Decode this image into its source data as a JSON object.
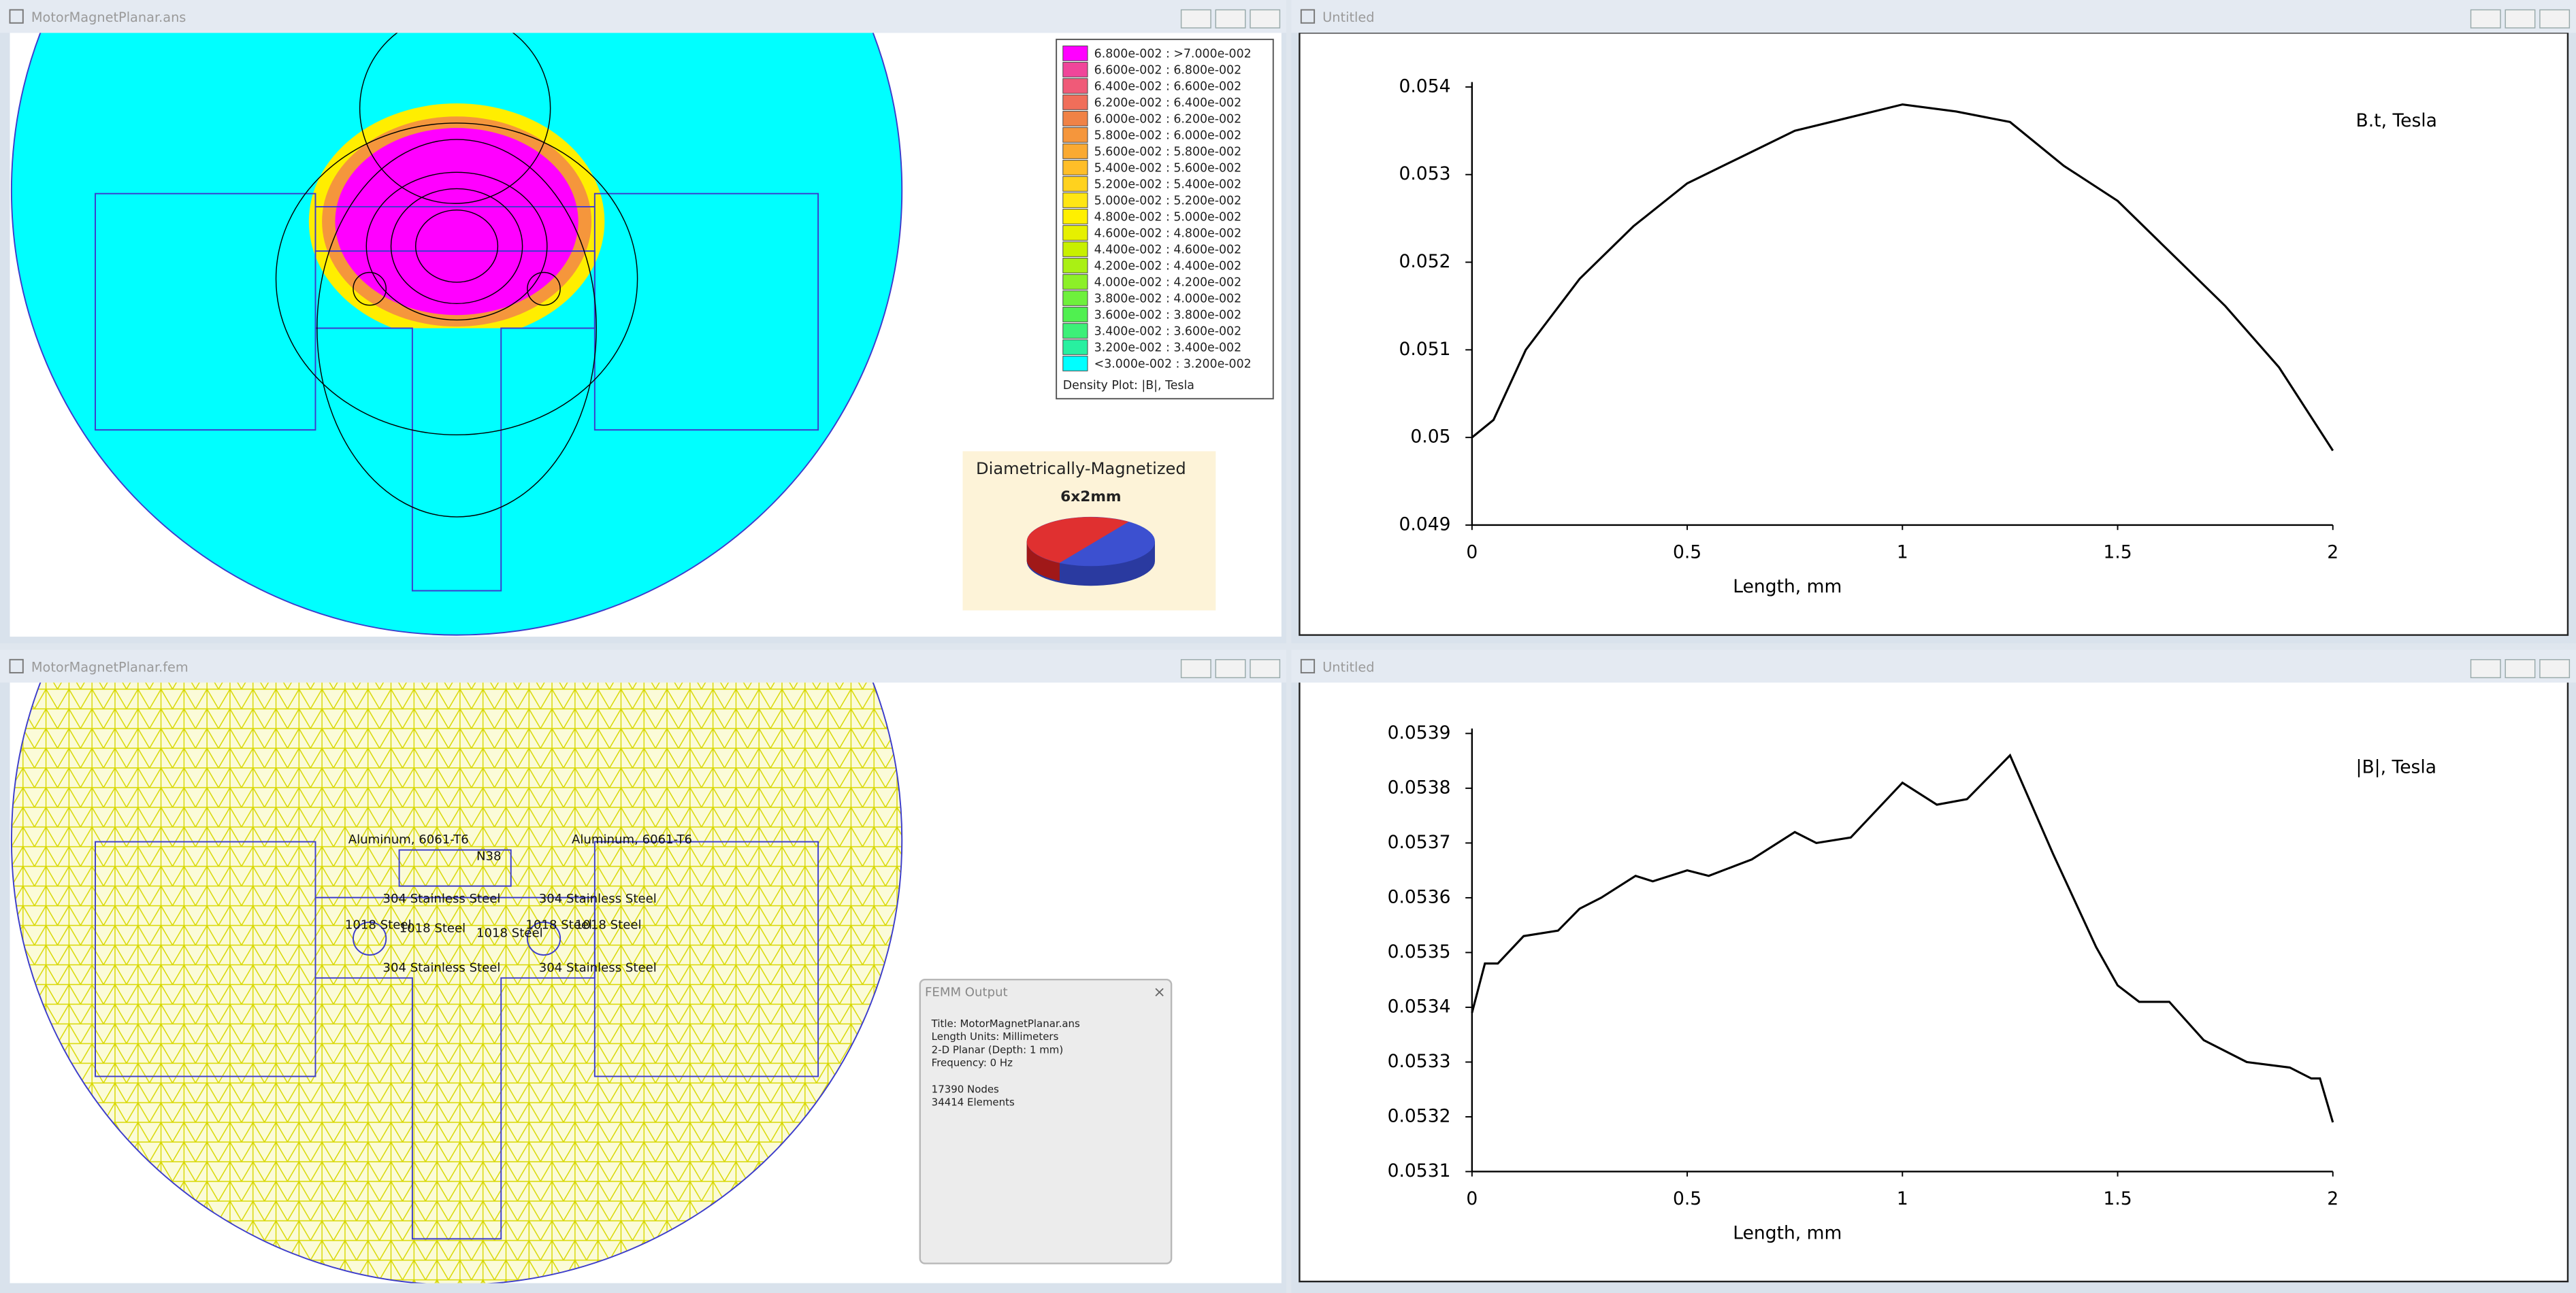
{
  "windows": [
    {
      "title": "MotorMagnetPlanar.ans",
      "legend": {
        "entries": [
          {
            "label": "6.800e-002 : >7.000e-002",
            "color": "#ff00ff"
          },
          {
            "label": "6.600e-002 : 6.800e-002",
            "color": "#f0469a"
          },
          {
            "label": "6.400e-002 : 6.600e-002",
            "color": "#f05a78"
          },
          {
            "label": "6.200e-002 : 6.400e-002",
            "color": "#f06e5a"
          },
          {
            "label": "6.000e-002 : 6.200e-002",
            "color": "#f08246"
          },
          {
            "label": "5.800e-002 : 6.000e-002",
            "color": "#f5963c"
          },
          {
            "label": "5.600e-002 : 5.800e-002",
            "color": "#faaa32"
          },
          {
            "label": "5.400e-002 : 5.600e-002",
            "color": "#ffbe28"
          },
          {
            "label": "5.200e-002 : 5.400e-002",
            "color": "#ffd21e"
          },
          {
            "label": "5.000e-002 : 5.200e-002",
            "color": "#ffe614"
          },
          {
            "label": "4.800e-002 : 5.000e-002",
            "color": "#fff000"
          },
          {
            "label": "4.600e-002 : 4.800e-002",
            "color": "#e6f000"
          },
          {
            "label": "4.400e-002 : 4.600e-002",
            "color": "#c8f000"
          },
          {
            "label": "4.200e-002 : 4.400e-002",
            "color": "#aaf014"
          },
          {
            "label": "4.000e-002 : 4.200e-002",
            "color": "#8cf028"
          },
          {
            "label": "3.800e-002 : 4.000e-002",
            "color": "#6ef03c"
          },
          {
            "label": "3.600e-002 : 3.800e-002",
            "color": "#50f050"
          },
          {
            "label": "3.400e-002 : 3.600e-002",
            "color": "#3cf078"
          },
          {
            "label": "3.200e-002 : 3.400e-002",
            "color": "#28f0a0"
          },
          {
            "label": "<3.000e-002 : 3.200e-002",
            "color": "#00ffff"
          }
        ],
        "caption": "Density Plot: |B|, Tesla"
      },
      "inset": {
        "title": "Diametrically-Magnetized",
        "subtitle": "6x2mm"
      }
    },
    {
      "title": "Untitled",
      "chart": {
        "type": "line",
        "annotation": "B.t, Tesla",
        "x_label": "Length, mm",
        "color": "#000000",
        "x": [
          0,
          0.05,
          0.125,
          0.25,
          0.375,
          0.5,
          0.625,
          0.75,
          0.875,
          1.0,
          1.125,
          1.25,
          1.375,
          1.5,
          1.625,
          1.75,
          1.875,
          2.0
        ],
        "values": [
          0.05,
          0.0502,
          0.051,
          0.05181,
          0.05241,
          0.0529,
          0.0532,
          0.0535,
          0.05365,
          0.0538,
          0.05372,
          0.0536,
          0.0531,
          0.0527,
          0.0521,
          0.0515,
          0.0508,
          0.04985
        ],
        "xlim": [
          0,
          2
        ],
        "xticks": [
          0,
          0.5,
          1,
          1.5,
          2
        ],
        "ylim": [
          0.049,
          0.054
        ],
        "yticks": [
          0.049,
          0.05,
          0.051,
          0.052,
          0.053,
          0.054
        ]
      }
    },
    {
      "title": "MotorMagnetPlanar.fem",
      "labels": [
        "Aluminum, 6061-T6",
        "Aluminum, 6061-T6",
        "N38",
        "304 Stainless Steel",
        "304 Stainless Steel",
        "304 Stainless Steel",
        "304 Stainless Steel",
        "1018 Steel",
        "1018 Steel",
        "1018 Steel",
        "1018 Steel",
        "1018 Steel"
      ],
      "output": {
        "title": "FEMM Output",
        "lines": [
          "Title: MotorMagnetPlanar.ans",
          "Length Units: Millimeters",
          "2-D Planar (Depth: 1 mm)",
          "Frequency: 0 Hz",
          "17390 Nodes",
          "34414 Elements"
        ]
      }
    },
    {
      "title": "Untitled",
      "chart": {
        "type": "line",
        "annotation": "|B|, Tesla",
        "x_label": "Length, mm",
        "color": "#000000",
        "x": [
          0,
          0.03,
          0.06,
          0.12,
          0.2,
          0.25,
          0.3,
          0.38,
          0.42,
          0.5,
          0.55,
          0.65,
          0.75,
          0.8,
          0.88,
          1.0,
          1.08,
          1.15,
          1.25,
          1.35,
          1.45,
          1.5,
          1.55,
          1.62,
          1.7,
          1.8,
          1.9,
          1.95,
          1.97,
          2.0
        ],
        "values": [
          0.05339,
          0.05348,
          0.05348,
          0.05353,
          0.05354,
          0.05358,
          0.0536,
          0.05364,
          0.05363,
          0.05365,
          0.05364,
          0.05367,
          0.05372,
          0.0537,
          0.05371,
          0.05381,
          0.05377,
          0.05378,
          0.05386,
          0.05368,
          0.05351,
          0.05344,
          0.05341,
          0.05341,
          0.05334,
          0.0533,
          0.05329,
          0.05327,
          0.05327,
          0.05319
        ],
        "xlim": [
          0,
          2
        ],
        "xticks": [
          0,
          0.5,
          1,
          1.5,
          2
        ],
        "ylim": [
          0.0531,
          0.0539
        ],
        "yticks": [
          0.0531,
          0.0532,
          0.0533,
          0.0534,
          0.0535,
          0.0536,
          0.0537,
          0.0538,
          0.0539
        ]
      }
    }
  ]
}
